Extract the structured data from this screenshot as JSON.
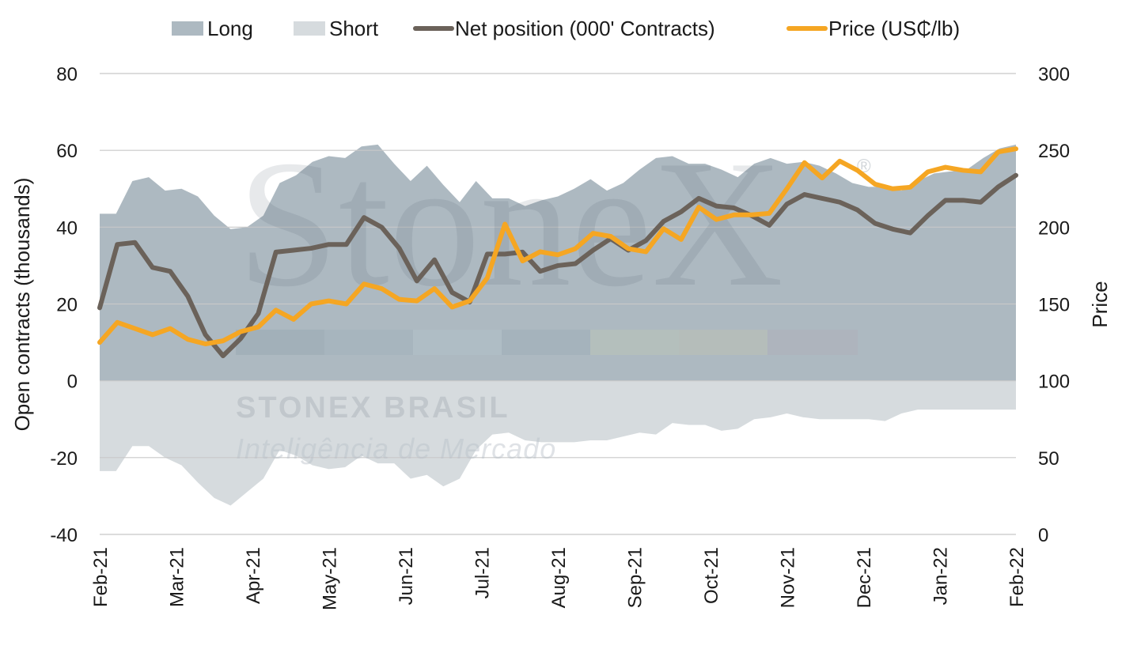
{
  "chart_data": {
    "type": "area",
    "xlabel": "",
    "ylabel": "Open contracts (thousands)",
    "y2label": "Price",
    "ylim": [
      -40,
      80
    ],
    "y2lim": [
      0,
      300
    ],
    "yticks": [
      -40,
      -20,
      0,
      20,
      40,
      60,
      80
    ],
    "y2ticks": [
      0,
      50,
      100,
      150,
      200,
      250,
      300
    ],
    "grid": true,
    "legend_position": "top",
    "x_tick_labels": [
      "Feb-21",
      "Mar-21",
      "Apr-21",
      "May-21",
      "Jun-21",
      "Jul-21",
      "Aug-21",
      "Sep-21",
      "Oct-21",
      "Nov-21",
      "Dec-21",
      "Jan-22",
      "Feb-22"
    ],
    "series": [
      {
        "name": "Long",
        "kind": "area",
        "axis": "left",
        "color": "#adb9c1",
        "values": [
          43.5,
          43.5,
          52,
          53,
          49.5,
          50,
          48,
          43,
          39.5,
          40,
          43,
          51.5,
          53.5,
          57,
          58.5,
          58,
          61,
          61.5,
          56.5,
          52,
          56,
          51,
          46.5,
          52,
          47.5,
          47.5,
          45.5,
          47,
          48,
          50,
          52.5,
          49.5,
          51.5,
          55,
          58,
          58.5,
          56.5,
          56.5,
          55,
          53,
          56.5,
          58,
          56.5,
          57,
          56,
          54,
          51.5,
          50.5,
          50.5,
          49.5,
          52,
          54,
          54.5,
          55,
          58,
          60.5,
          61.5
        ]
      },
      {
        "name": "Short",
        "kind": "area",
        "axis": "left",
        "color": "#d6dbde",
        "values": [
          -23.5,
          -23.5,
          -17,
          -17,
          -20,
          -22,
          -26.5,
          -30.5,
          -32.5,
          -29,
          -25.5,
          -18,
          -19.5,
          -22,
          -23,
          -22.5,
          -19.5,
          -21.5,
          -21.5,
          -25.5,
          -24.5,
          -27.5,
          -25.5,
          -18,
          -14,
          -13.5,
          -15.5,
          -16,
          -16,
          -16,
          -15.5,
          -15.5,
          -14.5,
          -13.5,
          -14,
          -11,
          -11.5,
          -11.5,
          -13,
          -12.5,
          -10,
          -9.5,
          -8.5,
          -9.5,
          -10,
          -10,
          -10,
          -10,
          -10.5,
          -8.5,
          -7.5,
          -7.5,
          -7.5,
          -7.5,
          -7.5,
          -7.5,
          -7.5
        ]
      },
      {
        "name": "Net position (000' Contracts)",
        "kind": "line",
        "axis": "left",
        "color": "#6b625a",
        "values": [
          19,
          35.5,
          36,
          29.5,
          28.5,
          22,
          12,
          6.5,
          11,
          17.5,
          33.5,
          34,
          34.5,
          35.5,
          35.5,
          42.5,
          40,
          34.5,
          26,
          31.5,
          23,
          20.5,
          33,
          33,
          33.5,
          28.5,
          30,
          30.5,
          34,
          37,
          34,
          36.5,
          41.5,
          44,
          47.5,
          45.5,
          45,
          43,
          40.5,
          46,
          48.5,
          47.5,
          46.5,
          44.5,
          41,
          39.5,
          38.5,
          43,
          47,
          47,
          46.5,
          50.5,
          53.5
        ]
      },
      {
        "name": "Price (US₵/lb)",
        "kind": "line",
        "axis": "right",
        "color": "#f5a623",
        "values": [
          125,
          138,
          134,
          130,
          134,
          127,
          124,
          126,
          132,
          135,
          146,
          140,
          150,
          152,
          150,
          163,
          160,
          153,
          152,
          160,
          148,
          152,
          167,
          202,
          178,
          184,
          182,
          186,
          196,
          194,
          186,
          184,
          199,
          192,
          213,
          205,
          208,
          208,
          209,
          225,
          242,
          232,
          243,
          237,
          228,
          225,
          226,
          236,
          239,
          237,
          236,
          249,
          251
        ]
      }
    ]
  },
  "watermark": {
    "brand": "StoneX",
    "registered": "®",
    "company": "STONEX BRASIL",
    "tagline": "Inteligência de Mercado"
  },
  "colors": {
    "grid": "#c8c8c8",
    "text": "#1a1a1a"
  }
}
